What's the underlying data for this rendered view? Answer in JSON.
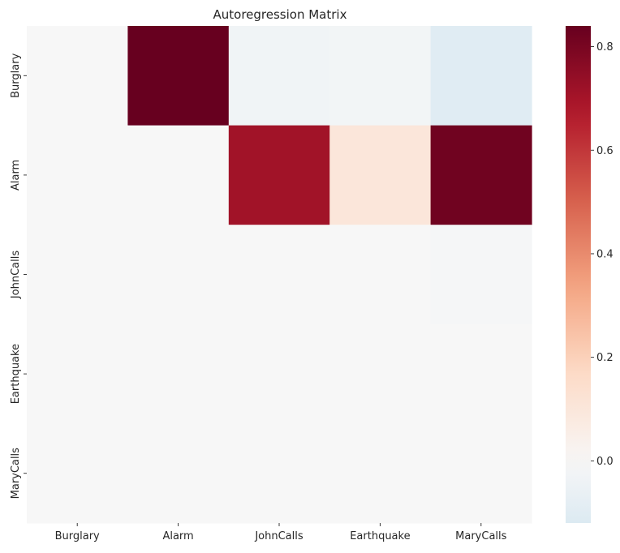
{
  "chart_data": {
    "type": "heatmap",
    "title": "Autoregression Matrix",
    "xlabel": "",
    "ylabel": "",
    "rows": [
      "Burglary",
      "Alarm",
      "JohnCalls",
      "Earthquake",
      "MaryCalls"
    ],
    "cols": [
      "Burglary",
      "Alarm",
      "JohnCalls",
      "Earthquake",
      "MaryCalls"
    ],
    "values": [
      [
        0.0,
        0.84,
        -0.03,
        -0.02,
        -0.1
      ],
      [
        0.0,
        0.0,
        0.71,
        0.1,
        0.82
      ],
      [
        0.0,
        0.0,
        0.0,
        0.0,
        -0.01
      ],
      [
        0.0,
        0.0,
        0.0,
        0.0,
        0.0
      ],
      [
        0.0,
        0.0,
        0.0,
        0.0,
        0.0
      ]
    ],
    "colormap": "RdBu_r",
    "center": 0,
    "vmin": -0.12,
    "vmax": 0.84,
    "colorbar_ticks": [
      "0.0",
      "0.2",
      "0.4",
      "0.6",
      "0.8"
    ],
    "colorbar_tick_values": [
      0,
      0.2,
      0.4,
      0.6,
      0.8
    ],
    "grid": false
  }
}
